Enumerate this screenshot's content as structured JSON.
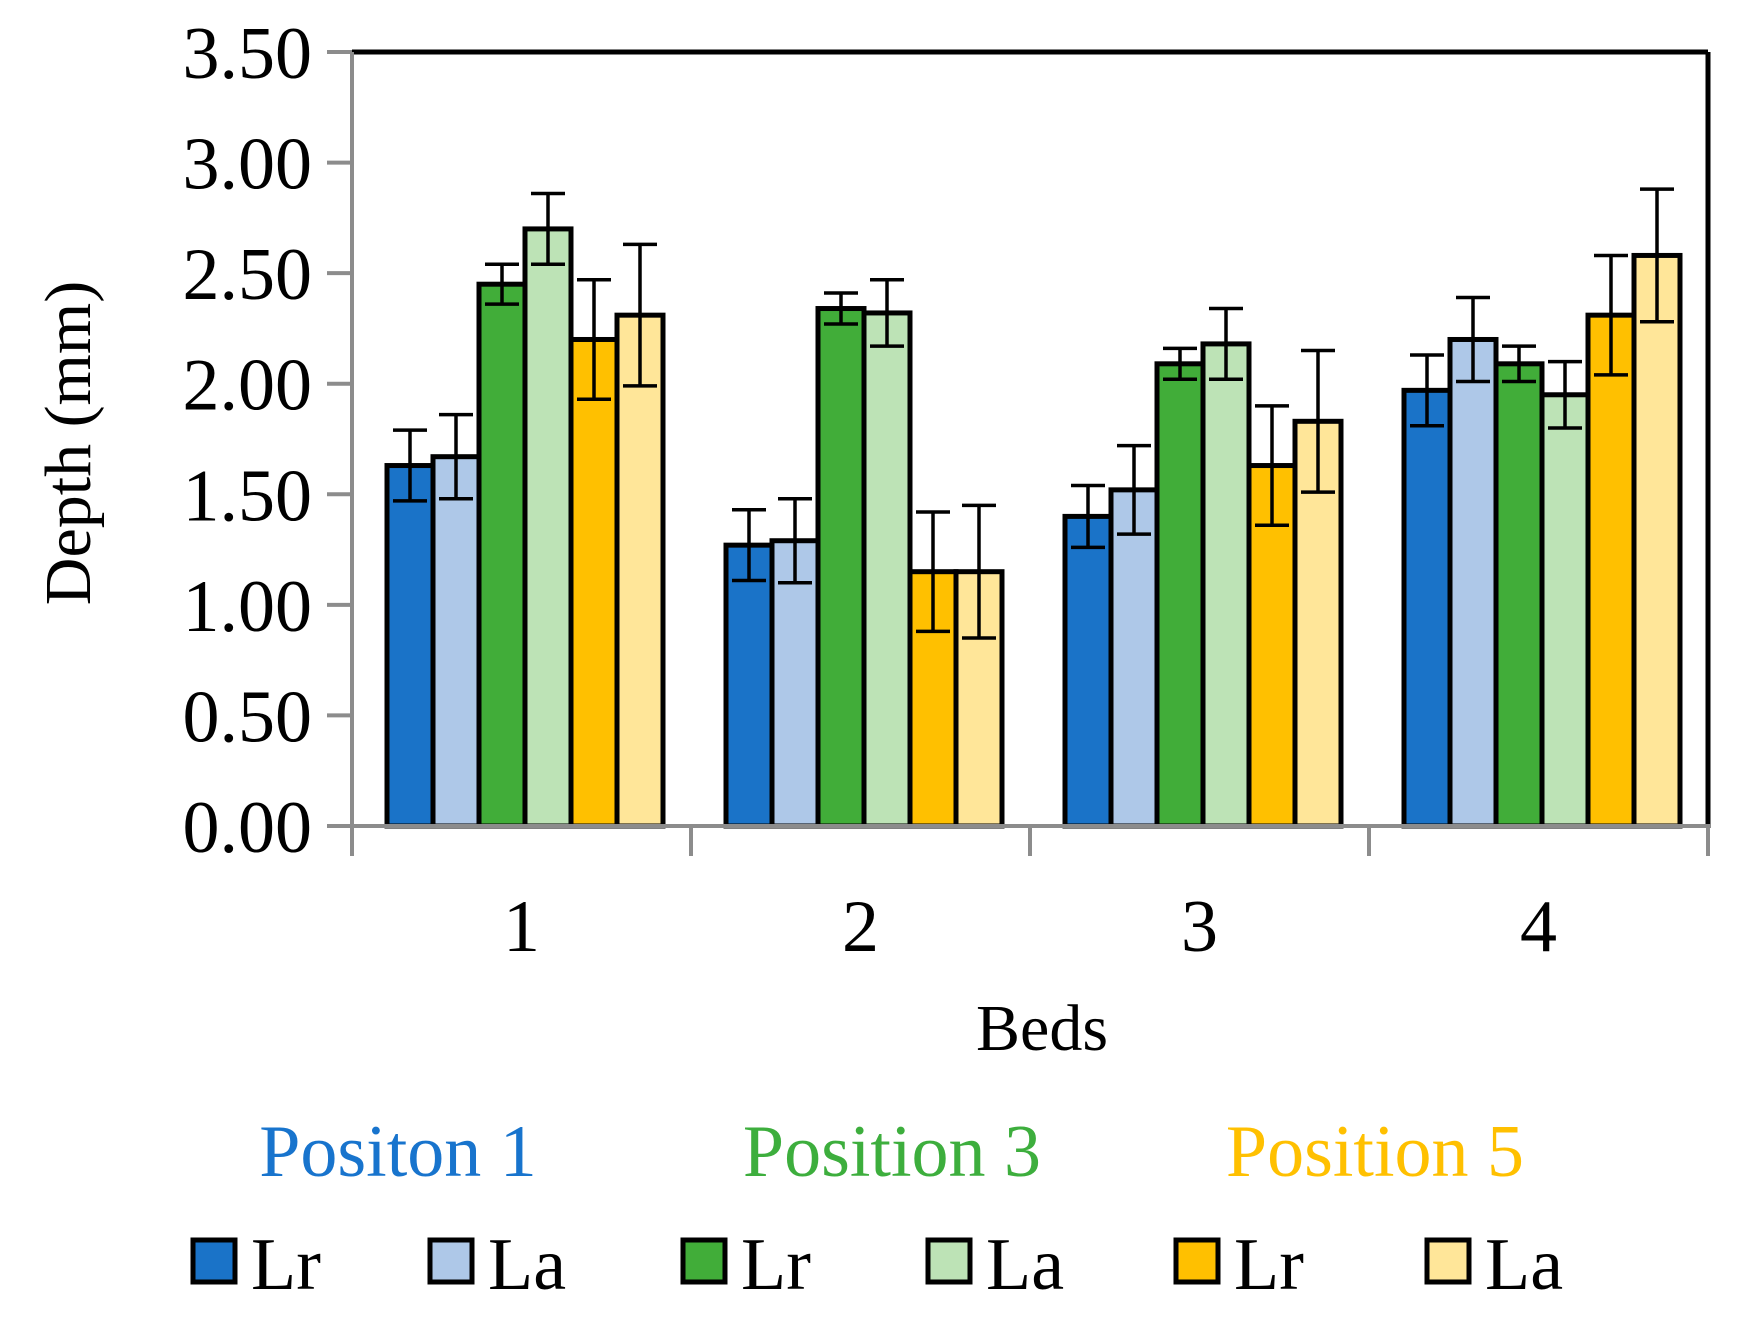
{
  "chart_data": {
    "type": "bar",
    "title": "",
    "xlabel": "Beds",
    "ylabel": "Depth (mm)",
    "ylim": [
      0,
      3.5
    ],
    "yticks": [
      "0.00",
      "0.50",
      "1.00",
      "1.50",
      "2.00",
      "2.50",
      "3.00",
      "3.50"
    ],
    "ytick_values": [
      0,
      0.5,
      1.0,
      1.5,
      2.0,
      2.5,
      3.0,
      3.5
    ],
    "categories": [
      "1",
      "2",
      "3",
      "4"
    ],
    "grid": false,
    "legend_position": "bottom",
    "group_labels": [
      {
        "text": "Positon 1",
        "color": "#1874CD"
      },
      {
        "text": "Position 3",
        "color": "#3DAE3D"
      },
      {
        "text": "Position 5",
        "color": "#FFC000"
      }
    ],
    "series": [
      {
        "name": "Lr",
        "color": "#1A73C8",
        "values": [
          1.63,
          1.27,
          1.4,
          1.97
        ],
        "errors": [
          0.16,
          0.16,
          0.14,
          0.16
        ]
      },
      {
        "name": "La",
        "color": "#AEC8E8",
        "values": [
          1.67,
          1.29,
          1.52,
          2.2
        ],
        "errors": [
          0.19,
          0.19,
          0.2,
          0.19
        ]
      },
      {
        "name": "Lr",
        "color": "#41AD39",
        "values": [
          2.45,
          2.34,
          2.09,
          2.09
        ],
        "errors": [
          0.09,
          0.07,
          0.07,
          0.08
        ]
      },
      {
        "name": "La",
        "color": "#BDE3B6",
        "values": [
          2.7,
          2.32,
          2.18,
          1.95
        ],
        "errors": [
          0.16,
          0.15,
          0.16,
          0.15
        ]
      },
      {
        "name": "Lr",
        "color": "#FFC000",
        "values": [
          2.2,
          1.15,
          1.63,
          2.31
        ],
        "errors": [
          0.27,
          0.27,
          0.27,
          0.27
        ]
      },
      {
        "name": "La",
        "color": "#FFE699",
        "values": [
          2.31,
          1.15,
          1.83,
          2.58
        ],
        "errors": [
          0.32,
          0.3,
          0.32,
          0.3
        ]
      }
    ]
  }
}
